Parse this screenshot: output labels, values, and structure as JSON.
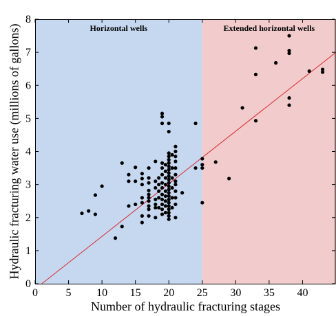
{
  "chart_data": {
    "type": "scatter",
    "title": "",
    "xlabel": "Number of hydraulic fracturing stages",
    "ylabel": "Hydraulic fracturing water use (millions of gallons)",
    "xlim": [
      0,
      45
    ],
    "ylim": [
      0,
      8
    ],
    "x_ticks": [
      0,
      5,
      10,
      15,
      20,
      25,
      30,
      35,
      40
    ],
    "y_ticks": [
      0,
      1,
      2,
      3,
      4,
      5,
      6,
      7,
      8
    ],
    "grid": false,
    "regions": [
      {
        "label": "Horizontal wells",
        "x_start": 0,
        "x_end": 25,
        "color": "#c6d8f0"
      },
      {
        "label": "Extended horizontal wells",
        "x_start": 25,
        "x_end": 45,
        "color": "#f2cccc"
      }
    ],
    "trend_line": {
      "x": [
        1,
        45
      ],
      "y": [
        0,
        7
      ],
      "color": "#d9282f"
    },
    "point_color": "#000000",
    "points": [
      [
        7,
        2.13
      ],
      [
        8,
        2.2
      ],
      [
        9,
        2.1
      ],
      [
        9,
        2.68
      ],
      [
        10,
        2.95
      ],
      [
        12,
        1.38
      ],
      [
        13,
        1.73
      ],
      [
        13,
        3.65
      ],
      [
        14,
        2.35
      ],
      [
        14,
        3.1
      ],
      [
        14,
        3.3
      ],
      [
        15,
        3.1
      ],
      [
        15,
        3.52
      ],
      [
        15,
        2.4
      ],
      [
        16,
        1.85
      ],
      [
        16,
        2.05
      ],
      [
        16,
        2.45
      ],
      [
        16,
        2.6
      ],
      [
        16,
        3.0
      ],
      [
        16,
        3.18
      ],
      [
        16,
        3.33
      ],
      [
        17,
        2.05
      ],
      [
        17,
        2.25
      ],
      [
        17,
        2.35
      ],
      [
        17,
        2.5
      ],
      [
        17,
        2.6
      ],
      [
        17,
        2.7
      ],
      [
        17,
        2.82
      ],
      [
        17,
        3.05
      ],
      [
        17,
        3.2
      ],
      [
        17,
        3.5
      ],
      [
        18,
        2.0
      ],
      [
        18,
        2.3
      ],
      [
        18,
        2.4
      ],
      [
        18,
        2.55
      ],
      [
        18,
        2.9
      ],
      [
        18,
        3.1
      ],
      [
        18,
        3.7
      ],
      [
        18.5,
        2.3
      ],
      [
        18.5,
        2.6
      ],
      [
        18.5,
        2.8
      ],
      [
        18.5,
        3.0
      ],
      [
        18.5,
        3.2
      ],
      [
        19,
        2.1
      ],
      [
        19,
        2.25
      ],
      [
        19,
        2.4
      ],
      [
        19,
        2.55
      ],
      [
        19,
        2.7
      ],
      [
        19,
        2.9
      ],
      [
        19,
        3.05
      ],
      [
        19,
        3.3
      ],
      [
        19,
        3.5
      ],
      [
        19,
        3.65
      ],
      [
        19,
        4.85
      ],
      [
        19,
        5.05
      ],
      [
        19,
        5.15
      ],
      [
        19.5,
        2.15
      ],
      [
        19.5,
        2.35
      ],
      [
        19.5,
        2.5
      ],
      [
        19.5,
        2.65
      ],
      [
        19.5,
        2.8
      ],
      [
        19.5,
        3.0
      ],
      [
        19.5,
        3.2
      ],
      [
        19.5,
        3.4
      ],
      [
        19.5,
        3.6
      ],
      [
        20,
        1.95
      ],
      [
        20,
        2.05
      ],
      [
        20,
        2.15
      ],
      [
        20,
        2.25
      ],
      [
        20,
        2.35
      ],
      [
        20,
        2.45
      ],
      [
        20,
        2.55
      ],
      [
        20,
        2.65
      ],
      [
        20,
        2.75
      ],
      [
        20,
        2.85
      ],
      [
        20,
        2.95
      ],
      [
        20,
        3.05
      ],
      [
        20,
        3.15
      ],
      [
        20,
        3.25
      ],
      [
        20,
        3.35
      ],
      [
        20,
        3.45
      ],
      [
        20,
        3.55
      ],
      [
        20,
        3.65
      ],
      [
        20,
        3.75
      ],
      [
        20,
        3.85
      ],
      [
        20,
        3.95
      ],
      [
        20,
        4.85
      ],
      [
        20,
        4.6
      ],
      [
        20.5,
        2.3
      ],
      [
        20.5,
        2.6
      ],
      [
        20.5,
        2.9
      ],
      [
        20.5,
        3.2
      ],
      [
        20.5,
        3.5
      ],
      [
        20.5,
        3.9
      ],
      [
        21,
        2.0
      ],
      [
        21,
        2.4
      ],
      [
        21,
        2.6
      ],
      [
        21,
        2.8
      ],
      [
        21,
        3.0
      ],
      [
        21,
        3.1
      ],
      [
        21,
        3.3
      ],
      [
        21,
        3.5
      ],
      [
        21,
        3.7
      ],
      [
        21,
        3.85
      ],
      [
        21,
        4.0
      ],
      [
        21,
        4.15
      ],
      [
        22,
        2.75
      ],
      [
        24,
        4.85
      ],
      [
        24,
        3.5
      ],
      [
        25,
        2.45
      ],
      [
        25,
        3.5
      ],
      [
        25,
        3.6
      ],
      [
        25,
        3.78
      ],
      [
        27,
        3.68
      ],
      [
        29,
        3.18
      ],
      [
        31,
        5.32
      ],
      [
        33,
        4.93
      ],
      [
        33,
        6.33
      ],
      [
        33,
        7.13
      ],
      [
        36,
        6.68
      ],
      [
        38,
        5.4
      ],
      [
        38,
        5.62
      ],
      [
        38,
        6.97
      ],
      [
        38,
        7.05
      ],
      [
        38,
        7.5
      ],
      [
        41,
        6.43
      ],
      [
        43,
        6.4
      ],
      [
        43,
        6.48
      ]
    ]
  }
}
